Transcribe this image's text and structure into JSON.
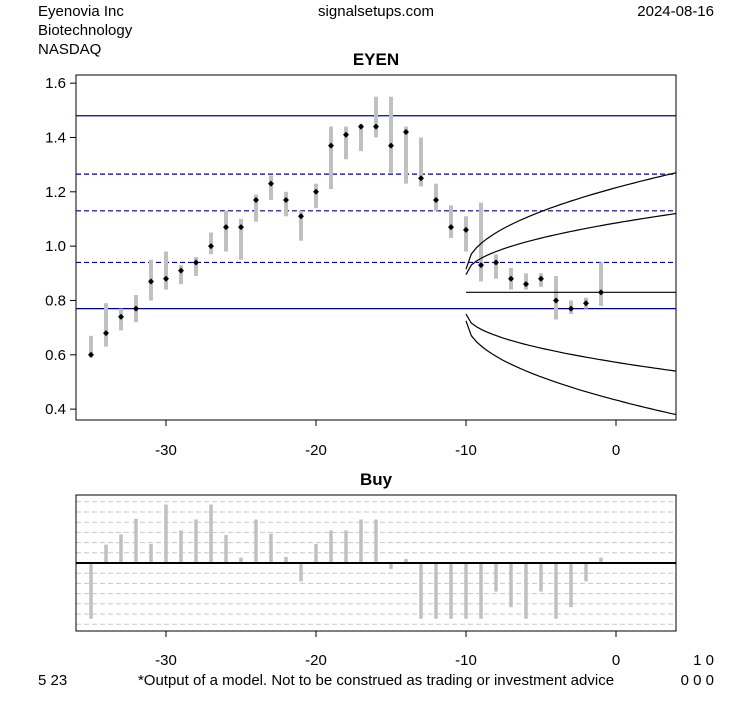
{
  "header": {
    "company": "Eyenovia Inc",
    "sector": "Biotechnology",
    "exchange": "NASDAQ",
    "source": "signalsetups.com",
    "date": "2024-08-16"
  },
  "footer": {
    "left_code": "5 23",
    "disclaimer": "*Output of a model. Not to be construed as trading or investment advice",
    "right_top": "1 0",
    "right_bottom": "0 0 0"
  },
  "colors": {
    "bar": "#c0c0c0",
    "level_line": "#00008b",
    "projection": "#000000",
    "grid_dash": "#c8c8c8"
  },
  "chart_data": [
    {
      "type": "price-range",
      "title": "EYEN",
      "xlim": [
        -36,
        4
      ],
      "ylim": [
        0.36,
        1.63
      ],
      "x_ticks": [
        -30,
        -20,
        -10,
        0
      ],
      "y_ticks": [
        0.4,
        0.6,
        0.8,
        1.0,
        1.2,
        1.4,
        1.6
      ],
      "y_tick_labels": [
        "0.4",
        "0.6",
        "0.8",
        "1.0",
        "1.2",
        "1.4",
        "1.6"
      ],
      "bars": [
        {
          "x": -35,
          "low": 0.59,
          "high": 0.67,
          "close": 0.6
        },
        {
          "x": -34,
          "low": 0.63,
          "high": 0.79,
          "close": 0.68
        },
        {
          "x": -33,
          "low": 0.69,
          "high": 0.77,
          "close": 0.74
        },
        {
          "x": -32,
          "low": 0.72,
          "high": 0.82,
          "close": 0.77
        },
        {
          "x": -31,
          "low": 0.8,
          "high": 0.95,
          "close": 0.87
        },
        {
          "x": -30,
          "low": 0.84,
          "high": 0.98,
          "close": 0.88
        },
        {
          "x": -29,
          "low": 0.86,
          "high": 0.93,
          "close": 0.91
        },
        {
          "x": -28,
          "low": 0.89,
          "high": 0.96,
          "close": 0.94
        },
        {
          "x": -27,
          "low": 0.97,
          "high": 1.05,
          "close": 1.0
        },
        {
          "x": -26,
          "low": 0.98,
          "high": 1.13,
          "close": 1.07
        },
        {
          "x": -25,
          "low": 0.95,
          "high": 1.1,
          "close": 1.07
        },
        {
          "x": -24,
          "low": 1.09,
          "high": 1.19,
          "close": 1.17
        },
        {
          "x": -23,
          "low": 1.17,
          "high": 1.26,
          "close": 1.23
        },
        {
          "x": -22,
          "low": 1.11,
          "high": 1.2,
          "close": 1.17
        },
        {
          "x": -21,
          "low": 1.02,
          "high": 1.13,
          "close": 1.11
        },
        {
          "x": -20,
          "low": 1.14,
          "high": 1.23,
          "close": 1.2
        },
        {
          "x": -19,
          "low": 1.21,
          "high": 1.44,
          "close": 1.37
        },
        {
          "x": -18,
          "low": 1.32,
          "high": 1.44,
          "close": 1.41
        },
        {
          "x": -17,
          "low": 1.35,
          "high": 1.45,
          "close": 1.44
        },
        {
          "x": -16,
          "low": 1.4,
          "high": 1.55,
          "close": 1.44
        },
        {
          "x": -15,
          "low": 1.27,
          "high": 1.55,
          "close": 1.37
        },
        {
          "x": -14,
          "low": 1.23,
          "high": 1.44,
          "close": 1.42
        },
        {
          "x": -13,
          "low": 1.22,
          "high": 1.4,
          "close": 1.25
        },
        {
          "x": -12,
          "low": 1.13,
          "high": 1.23,
          "close": 1.17
        },
        {
          "x": -11,
          "low": 1.03,
          "high": 1.15,
          "close": 1.07
        },
        {
          "x": -10,
          "low": 0.98,
          "high": 1.11,
          "close": 1.06
        },
        {
          "x": -9,
          "low": 0.87,
          "high": 1.16,
          "close": 0.93
        },
        {
          "x": -8,
          "low": 0.88,
          "high": 0.97,
          "close": 0.94
        },
        {
          "x": -7,
          "low": 0.84,
          "high": 0.92,
          "close": 0.88
        },
        {
          "x": -6,
          "low": 0.84,
          "high": 0.9,
          "close": 0.86
        },
        {
          "x": -5,
          "low": 0.85,
          "high": 0.9,
          "close": 0.88
        },
        {
          "x": -4,
          "low": 0.73,
          "high": 0.89,
          "close": 0.8
        },
        {
          "x": -3,
          "low": 0.75,
          "high": 0.8,
          "close": 0.77
        },
        {
          "x": -2,
          "low": 0.77,
          "high": 0.81,
          "close": 0.79
        },
        {
          "x": -1,
          "low": 0.78,
          "high": 0.94,
          "close": 0.83
        }
      ],
      "solid_levels": [
        1.48,
        0.77
      ],
      "dashed_levels": [
        1.265,
        1.13,
        0.94
      ],
      "projection_start": -10,
      "projection_end": 4,
      "projection_mid": 0.83,
      "projection_curves": [
        {
          "start": 0.915,
          "end": 1.27
        },
        {
          "start": 0.895,
          "end": 1.12
        },
        {
          "start": 0.75,
          "end": 0.54
        },
        {
          "start": 0.725,
          "end": 0.38
        }
      ]
    },
    {
      "type": "bar",
      "title": "Buy",
      "xlim": [
        -36,
        4
      ],
      "ylim": [
        -1.0,
        1.0
      ],
      "x_ticks": [
        -30,
        -20,
        -10,
        0
      ],
      "gridlines": [
        -0.9,
        -0.75,
        -0.6,
        -0.45,
        -0.3,
        -0.15,
        0.15,
        0.3,
        0.45,
        0.6,
        0.75,
        0.9
      ],
      "bars": [
        {
          "x": -35,
          "value": -0.82
        },
        {
          "x": -34,
          "value": 0.27
        },
        {
          "x": -33,
          "value": 0.42
        },
        {
          "x": -32,
          "value": 0.65
        },
        {
          "x": -31,
          "value": 0.28
        },
        {
          "x": -30,
          "value": 0.86
        },
        {
          "x": -29,
          "value": 0.48
        },
        {
          "x": -28,
          "value": 0.64
        },
        {
          "x": -27,
          "value": 0.86
        },
        {
          "x": -26,
          "value": 0.41
        },
        {
          "x": -25,
          "value": 0.08
        },
        {
          "x": -24,
          "value": 0.64
        },
        {
          "x": -23,
          "value": 0.43
        },
        {
          "x": -22,
          "value": 0.09
        },
        {
          "x": -21,
          "value": -0.27
        },
        {
          "x": -20,
          "value": 0.28
        },
        {
          "x": -19,
          "value": 0.48
        },
        {
          "x": -18,
          "value": 0.48
        },
        {
          "x": -17,
          "value": 0.64
        },
        {
          "x": -16,
          "value": 0.64
        },
        {
          "x": -15,
          "value": -0.09
        },
        {
          "x": -14,
          "value": 0.06
        },
        {
          "x": -13,
          "value": -0.82
        },
        {
          "x": -12,
          "value": -0.82
        },
        {
          "x": -11,
          "value": -0.82
        },
        {
          "x": -10,
          "value": -0.82
        },
        {
          "x": -9,
          "value": -0.82
        },
        {
          "x": -8,
          "value": -0.42
        },
        {
          "x": -7,
          "value": -0.65
        },
        {
          "x": -6,
          "value": -0.82
        },
        {
          "x": -5,
          "value": -0.42
        },
        {
          "x": -4,
          "value": -0.82
        },
        {
          "x": -3,
          "value": -0.65
        },
        {
          "x": -2,
          "value": -0.27
        },
        {
          "x": -1,
          "value": 0.08
        }
      ]
    }
  ]
}
